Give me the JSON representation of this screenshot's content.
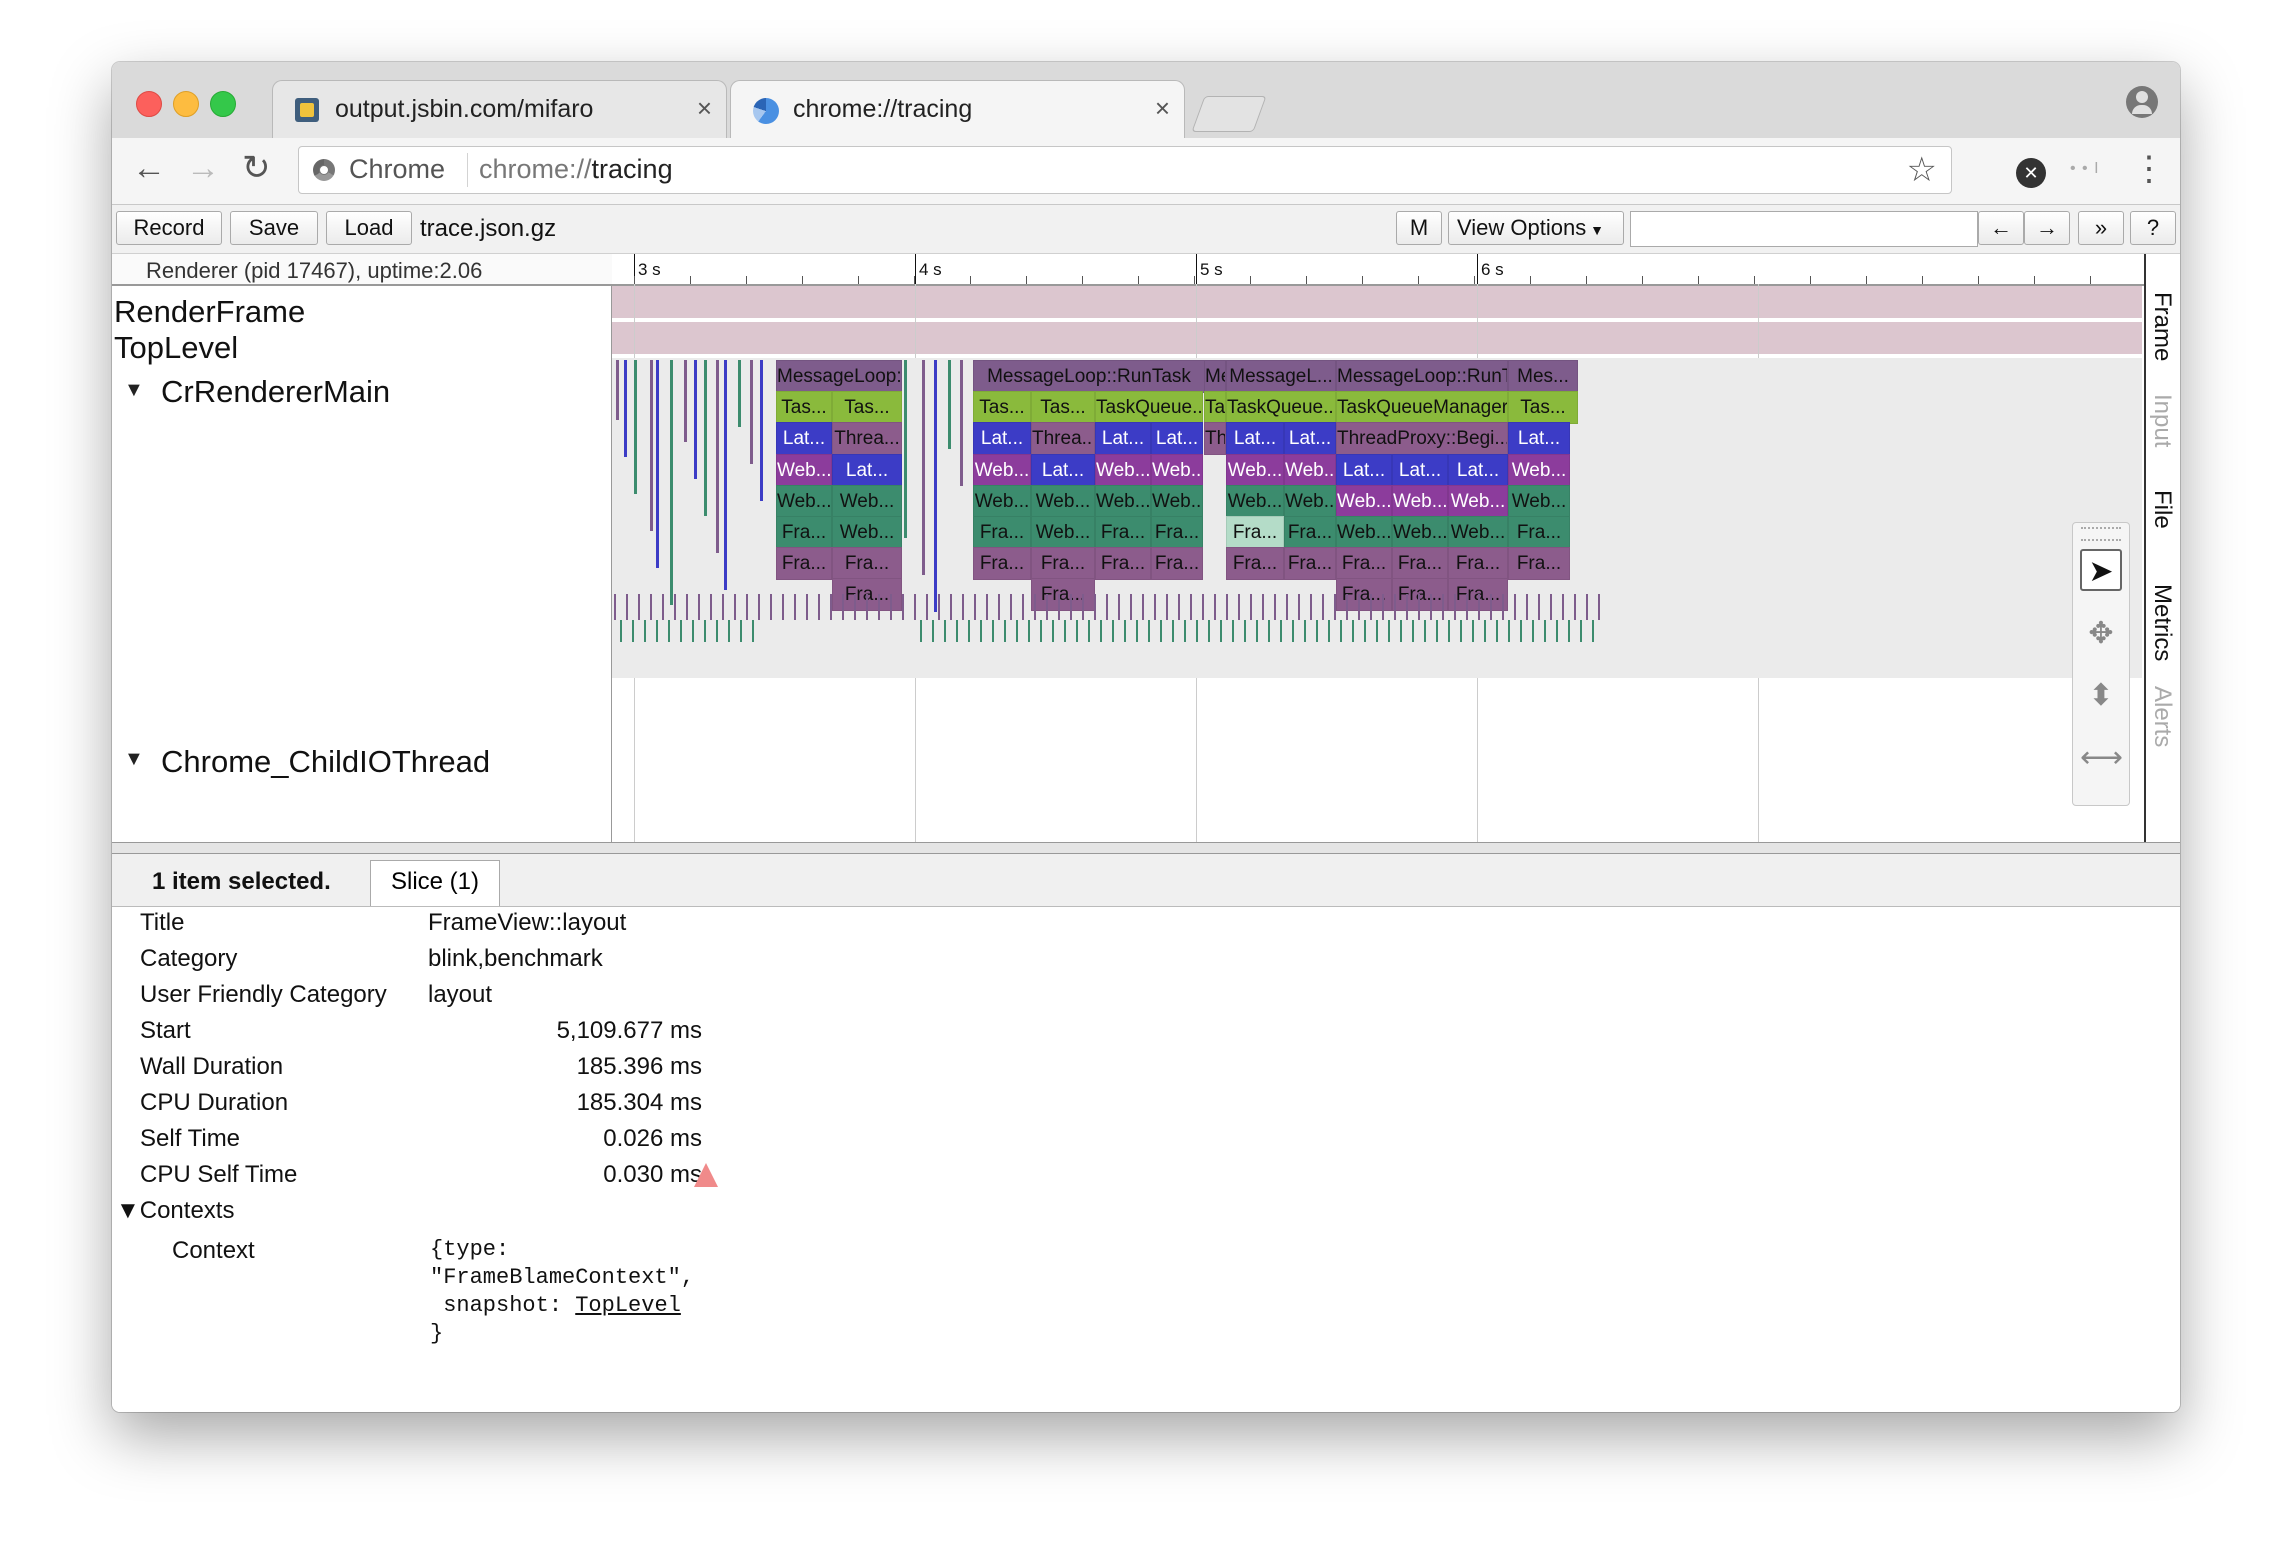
{
  "tabs": [
    {
      "label": "output.jsbin.com/mifaro",
      "close": "×"
    },
    {
      "label": "chrome://tracing",
      "close": "×"
    }
  ],
  "omnibox": {
    "chip": "Chrome",
    "scheme": "chrome://",
    "host": "tracing"
  },
  "toolbar": {
    "record": "Record",
    "save": "Save",
    "load": "Load",
    "filename": "trace.json.gz",
    "m": "M",
    "view_options": "View Options",
    "prev": "←",
    "next": "→",
    "more": "»",
    "help": "?"
  },
  "ruler": {
    "labels": [
      "3 s",
      "4 s",
      "5 s",
      "6 s"
    ]
  },
  "tracks": {
    "process_header": "Renderer (pid 17467), uptime:2.06",
    "render_frame": "RenderFrame",
    "top_level": "TopLevel",
    "main": "CrRendererMain",
    "io": "Chrome_ChildIOThread"
  },
  "slices": [
    "MessageLoop:...",
    "MessageLoop::RunTask",
    "Me",
    "MessageL...",
    "MessageLoop::RunTask",
    "Mes...",
    "Tas...",
    "Tas...",
    "Tas...",
    "Tas...",
    "TaskQueue...",
    "Ta",
    "TaskQueue...",
    "TaskQueueManager::Pr...",
    "Tas...",
    "Lat...",
    "Threa...",
    "Lat...",
    "Threa...",
    "Lat...",
    "Lat...",
    "Th",
    "Lat...",
    "Lat...",
    "ThreadProxy::Begi...",
    "Lat...",
    "Web...",
    "Lat...",
    "Web...",
    "Lat...",
    "Web...",
    "Web...",
    "Web...",
    "Web...",
    "Lat...",
    "Lat...",
    "Lat...",
    "Web...",
    "Web...",
    "Web...",
    "Web...",
    "Web...",
    "Web...",
    "Web...",
    "Web...",
    "Web...",
    "Web...",
    "Web...",
    "Web...",
    "Web...",
    "Fra...",
    "Web...",
    "Fra...",
    "Web...",
    "Fra...",
    "Fra...",
    "Fra...",
    "Fra...",
    "Web...",
    "Web...",
    "Web...",
    "Fra...",
    "Fra...",
    "Fra...",
    "Fra...",
    "Fra...",
    "Fra...",
    "Fra...",
    "Fra...",
    "Fra...",
    "Fra...",
    "Fra...",
    "Fra...",
    "Fra...",
    "Fra...",
    "Fra...",
    "Fra...",
    "Fra...",
    "Fra..."
  ],
  "side_tabs": [
    "Frame",
    "Input",
    "File",
    "Metrics",
    "Alerts"
  ],
  "analysis": {
    "selected": "1 item selected.",
    "tab": "Slice (1)",
    "rows": [
      {
        "key": "Title",
        "value": "FrameView::layout"
      },
      {
        "key": "Category",
        "value": "blink,benchmark"
      },
      {
        "key": "User Friendly Category",
        "value": "layout"
      },
      {
        "key": "Start",
        "value": "5,109.677 ms"
      },
      {
        "key": "Wall Duration",
        "value": "185.396 ms"
      },
      {
        "key": "CPU Duration",
        "value": "185.304 ms"
      },
      {
        "key": "Self Time",
        "value": "0.026 ms"
      },
      {
        "key": "CPU Self Time",
        "value": "0.030 ms"
      }
    ],
    "contexts_label": "▼Contexts",
    "context_key": "Context",
    "context_lines": [
      "{type:",
      "\"FrameBlameContext\",",
      " snapshot: ",
      "TopLevel",
      "}"
    ]
  },
  "colors": {
    "purple": "#7e5c8c",
    "green": "#8aba3c",
    "blue": "#3c3cc6",
    "magenta": "#8c3c9c",
    "teal": "#3c8c6e",
    "mauve": "#8c5c8c",
    "selected": "#b4dcc8"
  }
}
